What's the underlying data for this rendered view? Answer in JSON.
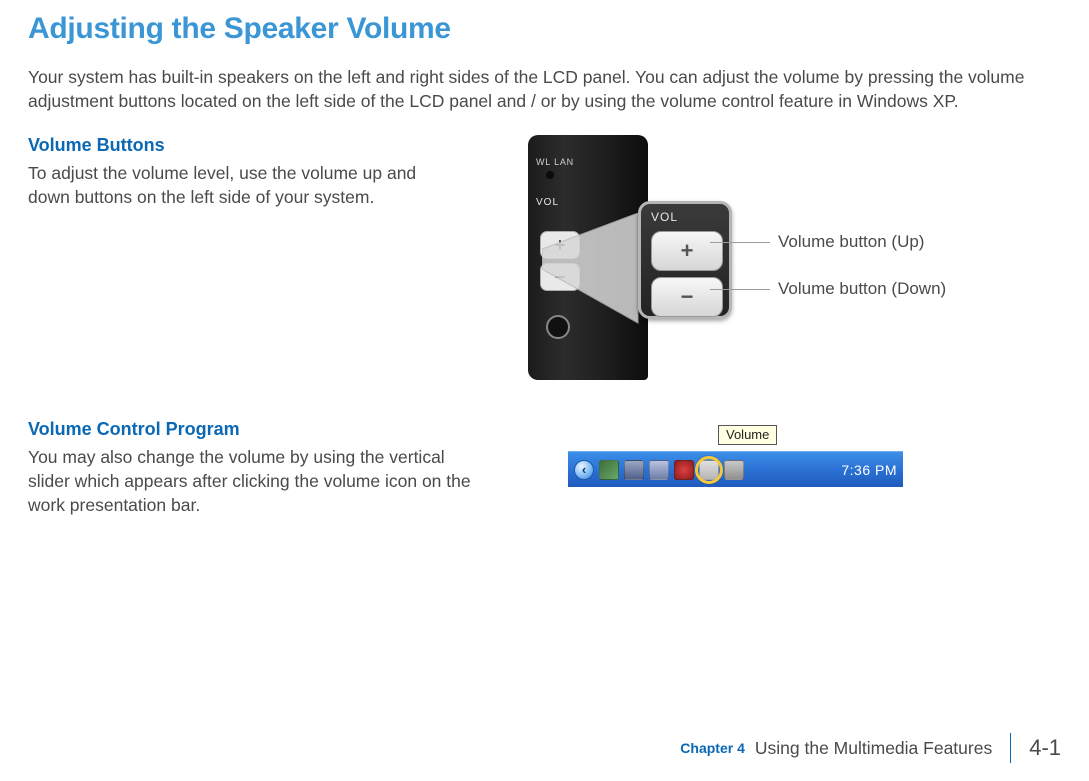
{
  "page": {
    "title": "Adjusting the Speaker Volume",
    "intro": "Your system has built-in speakers on the left and right sides of the LCD panel. You can adjust the volume by pressing the volume adjustment buttons located on the left side of the LCD panel and / or by using the volume control feature in Windows XP."
  },
  "section1": {
    "heading": "Volume Buttons",
    "body": "To adjust the volume level, use the volume up and down buttons on the left side of your system.",
    "figure": {
      "device_labels": {
        "wl": "WL LAN",
        "vol": "VOL"
      },
      "callout_label": "VOL",
      "button_up_glyph": "+",
      "button_down_glyph": "−",
      "label_up": "Volume button (Up)",
      "label_down": "Volume button (Down)"
    }
  },
  "section2": {
    "heading": "Volume Control Program",
    "body": "You may also change the volume by using the vertical slider which appears after clicking the volume icon on the work presentation bar.",
    "figure": {
      "tooltip_text": "Volume",
      "clock": "7:36 PM",
      "tray_icons": [
        {
          "name": "chevron-left-icon",
          "bg": "#5aa6ea"
        },
        {
          "name": "network-icon",
          "bg": "linear-gradient(135deg,#3e6f3e,#68a868)"
        },
        {
          "name": "monitor-icon",
          "bg": "linear-gradient(180deg,#9aa7c4,#51608a)"
        },
        {
          "name": "display-icon",
          "bg": "linear-gradient(180deg,#b8c4de,#6d7da8)"
        },
        {
          "name": "shield-icon",
          "bg": "radial-gradient(circle,#e04040,#8a1d1d)"
        },
        {
          "name": "volume-icon",
          "bg": "linear-gradient(180deg,#e0e0e0,#b5b5b5)"
        },
        {
          "name": "dial-icon",
          "bg": "linear-gradient(180deg,#c9c9c9,#8f8f8f)"
        }
      ],
      "highlight_index": 5
    }
  },
  "footer": {
    "chapter": "Chapter 4",
    "section": "Using the Multimedia Features",
    "page_number": "4-1"
  },
  "colors": {
    "title": "#3b96d6",
    "subtitle": "#0b68b4",
    "body_text": "#4a4a4a",
    "leader": "#9c9c9c",
    "highlight_ring": "#f5c73a"
  }
}
